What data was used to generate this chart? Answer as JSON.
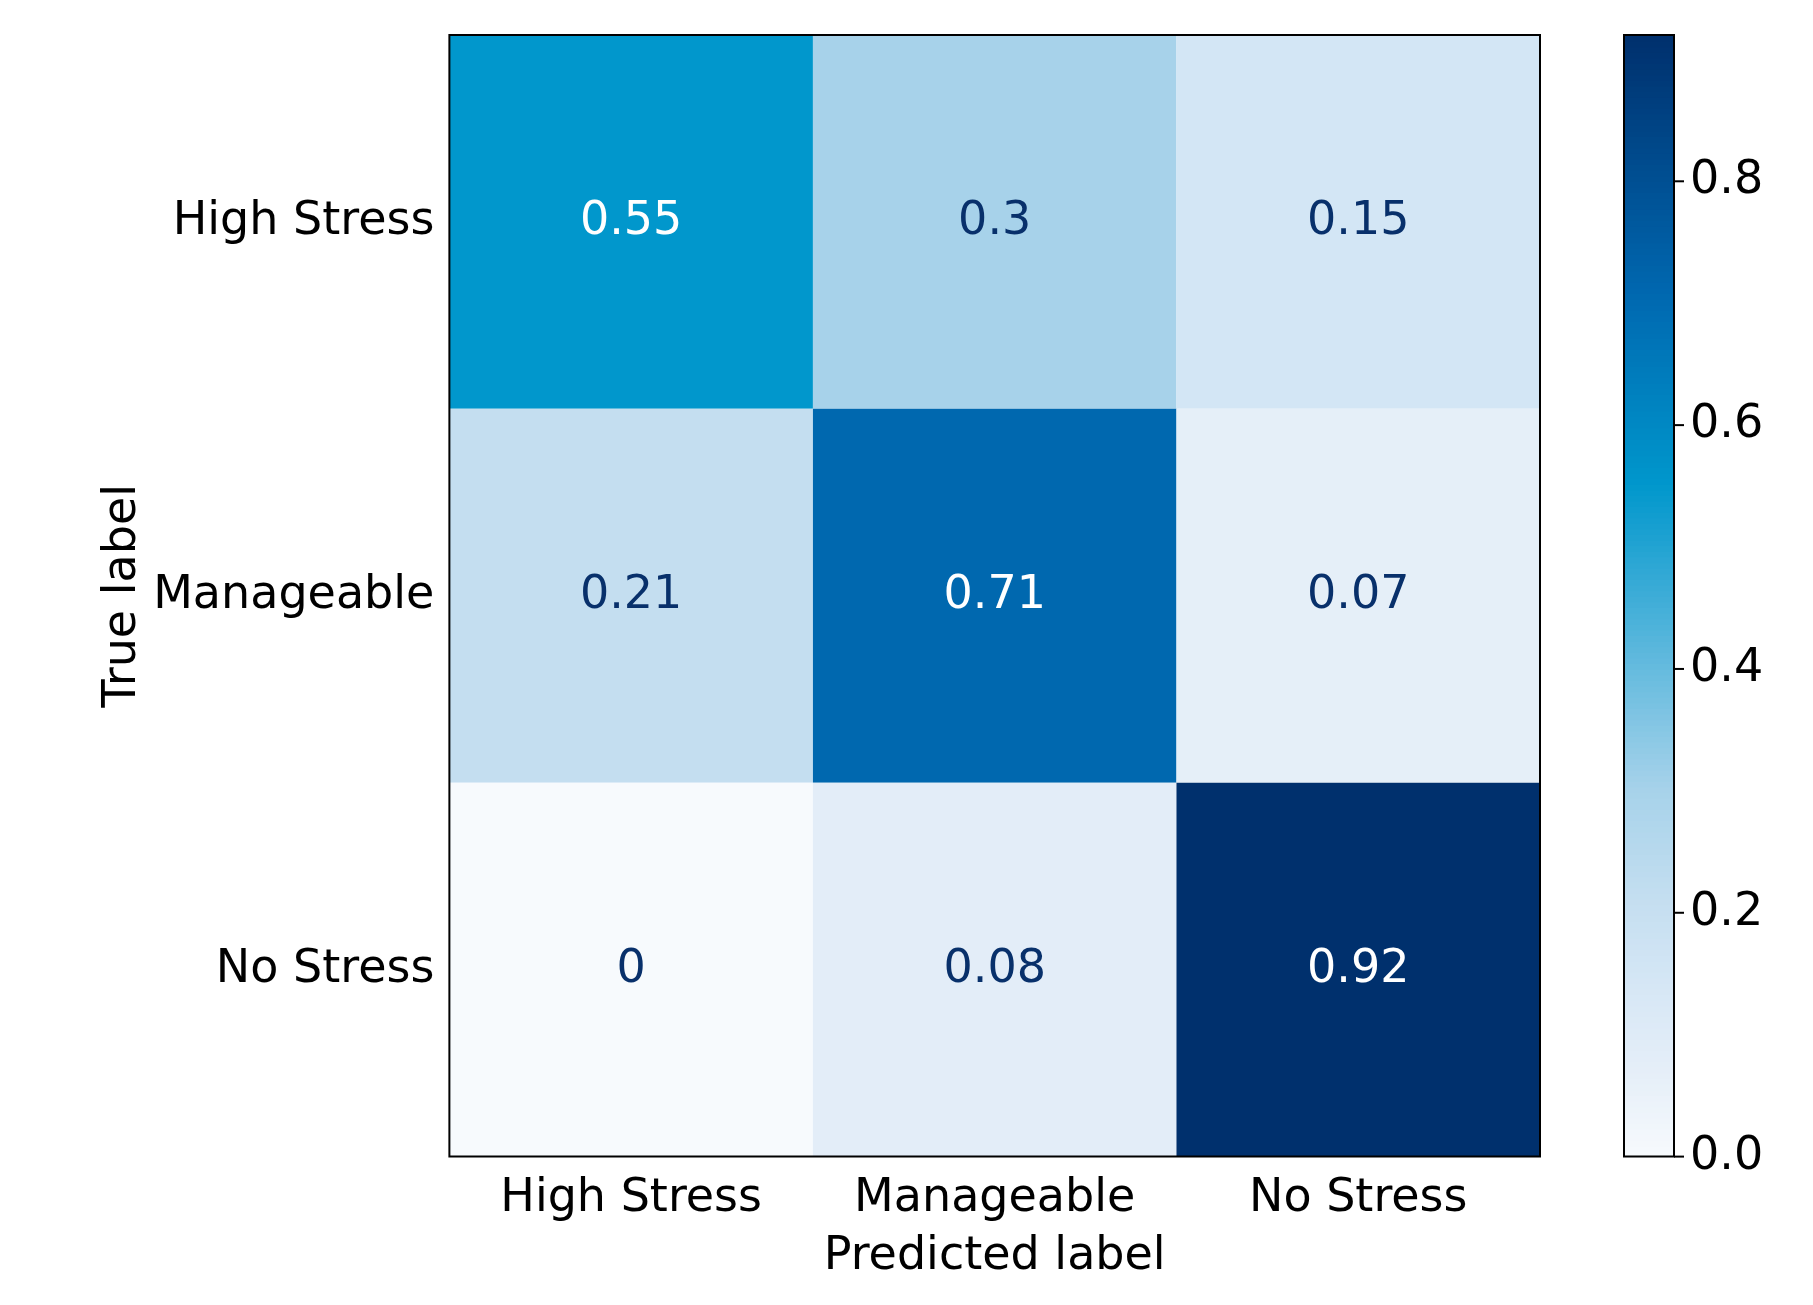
{
  "chart_data": {
    "type": "heatmap",
    "xlabel": "Predicted label",
    "ylabel": "True label",
    "categories": [
      "High Stress",
      "Manageable",
      "No Stress"
    ],
    "y_categories": [
      "High Stress",
      "Manageable",
      "No Stress"
    ],
    "cells": [
      [
        0.55,
        0.3,
        0.15
      ],
      [
        0.21,
        0.71,
        0.07
      ],
      [
        0,
        0.08,
        0.92
      ]
    ],
    "clim": [
      0,
      0.92
    ],
    "cticks": [
      {
        "value": 0,
        "label": "0.0"
      },
      {
        "value": 0.2,
        "label": "0.2"
      },
      {
        "value": 0.4,
        "label": "0.4"
      },
      {
        "value": 0.6,
        "label": "0.6"
      },
      {
        "value": 0.8,
        "label": "0.8"
      }
    ],
    "data_labels": true,
    "grid": false
  }
}
